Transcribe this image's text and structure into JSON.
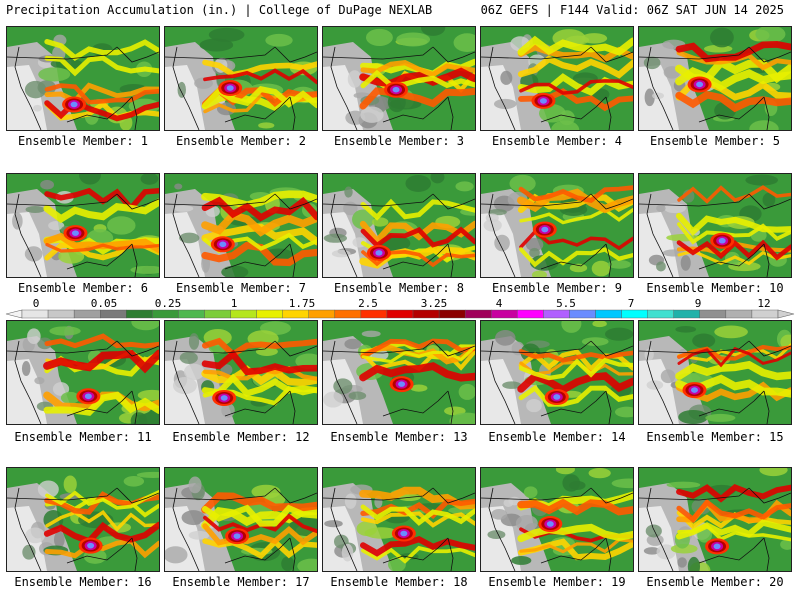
{
  "header": {
    "left": "Precipitation Accumulation (in.) | College of DuPage NEXLAB",
    "right": "06Z GEFS | F144 Valid: 06Z SAT JUN 14 2025"
  },
  "panels": [
    {
      "label": "Ensemble Member: 1",
      "seed": 11
    },
    {
      "label": "Ensemble Member: 2",
      "seed": 23
    },
    {
      "label": "Ensemble Member: 3",
      "seed": 37
    },
    {
      "label": "Ensemble Member: 4",
      "seed": 41
    },
    {
      "label": "Ensemble Member: 5",
      "seed": 53
    },
    {
      "label": "Ensemble Member: 6",
      "seed": 67
    },
    {
      "label": "Ensemble Member: 7",
      "seed": 71
    },
    {
      "label": "Ensemble Member: 8",
      "seed": 83
    },
    {
      "label": "Ensemble Member: 9",
      "seed": 97
    },
    {
      "label": "Ensemble Member: 10",
      "seed": 101
    },
    {
      "label": "Ensemble Member: 11",
      "seed": 113
    },
    {
      "label": "Ensemble Member: 12",
      "seed": 127
    },
    {
      "label": "Ensemble Member: 13",
      "seed": 131
    },
    {
      "label": "Ensemble Member: 14",
      "seed": 149
    },
    {
      "label": "Ensemble Member: 15",
      "seed": 151
    },
    {
      "label": "Ensemble Member: 16",
      "seed": 163
    },
    {
      "label": "Ensemble Member: 17",
      "seed": 173
    },
    {
      "label": "Ensemble Member: 18",
      "seed": 181
    },
    {
      "label": "Ensemble Member: 19",
      "seed": 191
    },
    {
      "label": "Ensemble Member: 20",
      "seed": 199
    }
  ],
  "colorbar": {
    "labels": [
      "0",
      "0.05",
      "0.25",
      "1",
      "1.75",
      "2.5",
      "3.25",
      "4",
      "5.5",
      "7",
      "9",
      "12"
    ],
    "colors": [
      "#e6e6e6",
      "#c8c8c8",
      "#a0a0a0",
      "#7a7a7a",
      "#2e7d32",
      "#3a9a3a",
      "#4fb84f",
      "#7ccd3a",
      "#b5e61d",
      "#e8f000",
      "#ffd400",
      "#ffa000",
      "#ff7000",
      "#ff3000",
      "#e00000",
      "#b40000",
      "#8b0000",
      "#a0005a",
      "#c800a0",
      "#ff00ff",
      "#b060ff",
      "#6a8cff",
      "#00c8ff",
      "#00ffff",
      "#40e0d0",
      "#20b2aa",
      "#909090",
      "#b0b0b0",
      "#d0d0d0"
    ]
  }
}
